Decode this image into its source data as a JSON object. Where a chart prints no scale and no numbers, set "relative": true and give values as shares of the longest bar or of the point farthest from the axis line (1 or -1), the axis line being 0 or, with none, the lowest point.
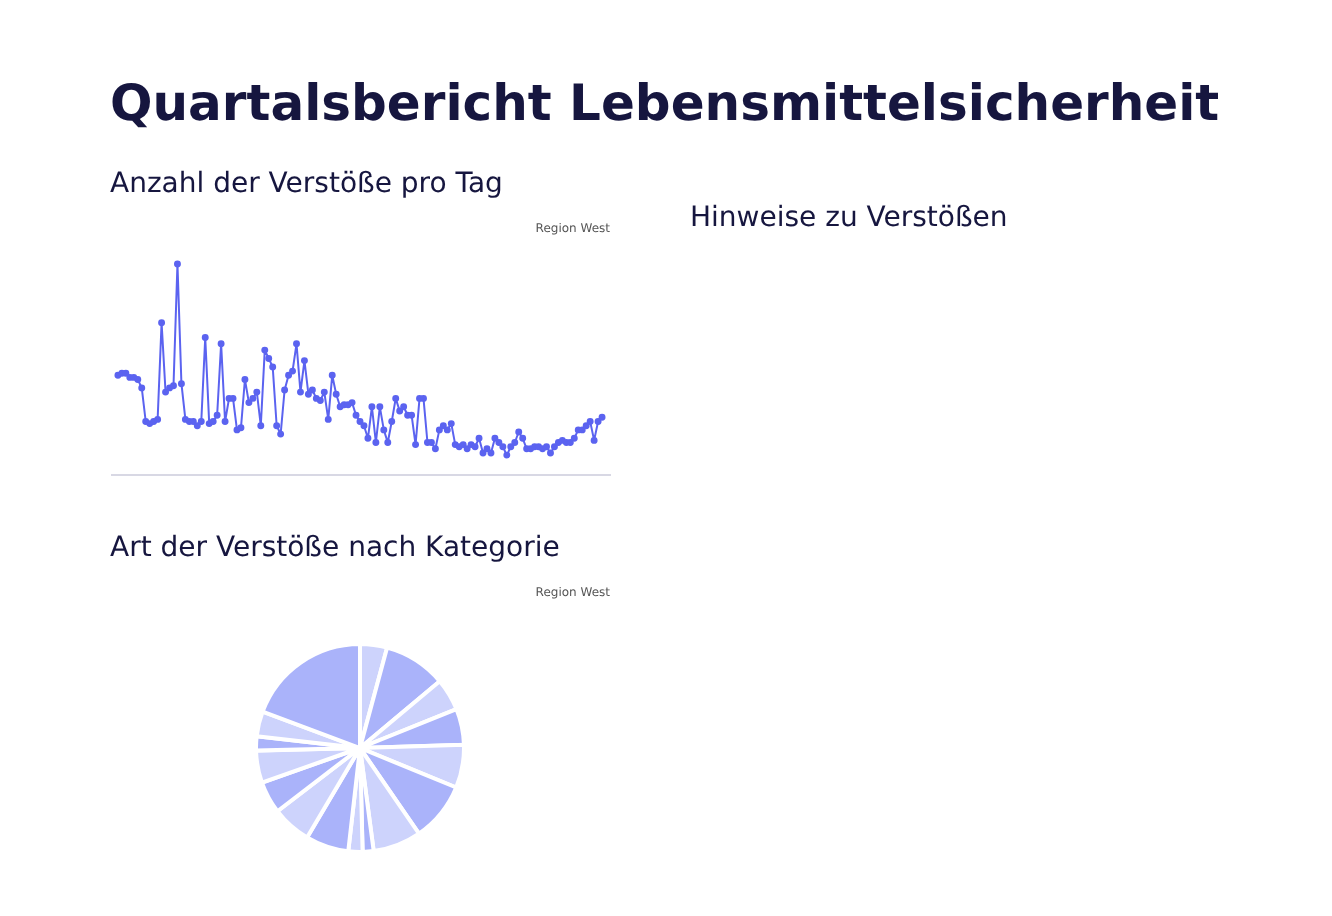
{
  "chart_data": [
    {
      "type": "other",
      "title": "Quartalsbericht Lebensmittelsicherheit"
    },
    {
      "type": "line",
      "title": "Anzahl der Verstöße pro Tag",
      "annotations": [
        "Region West"
      ],
      "relative": true,
      "marker": "circle",
      "line_style": "solid",
      "categories": [
        null,
        null,
        null,
        null,
        null,
        null,
        null,
        null,
        null,
        null,
        null,
        null,
        null,
        null,
        null,
        null,
        null,
        null,
        null,
        null,
        null,
        null,
        null,
        null,
        null,
        null,
        null,
        null,
        null,
        null,
        null,
        null,
        null,
        null,
        null,
        null,
        null,
        null,
        null,
        null,
        null,
        null,
        null,
        null,
        null,
        null,
        null,
        null,
        null,
        null,
        null,
        null,
        null,
        null,
        null,
        null,
        null,
        null,
        null,
        null,
        null,
        null,
        null,
        null,
        null,
        null,
        null,
        null,
        null,
        null,
        null,
        null,
        null,
        null,
        null,
        null,
        null,
        null,
        null,
        null,
        null,
        null,
        null,
        null,
        null,
        null,
        null,
        null,
        null,
        null,
        null,
        null,
        null,
        null,
        null,
        null,
        null,
        null,
        null,
        null,
        null,
        null,
        null,
        null,
        null,
        null,
        null,
        null,
        null,
        null,
        null,
        null,
        null,
        null,
        null,
        null,
        null,
        null,
        null,
        null,
        null,
        null,
        null
      ],
      "series": [
        {
          "color": "#5b63f0",
          "values": [
            0.47,
            0.48,
            0.48,
            0.46,
            0.46,
            0.45,
            0.41,
            0.25,
            0.24,
            0.25,
            0.26,
            0.72,
            0.39,
            0.41,
            0.42,
            1.0,
            0.43,
            0.26,
            0.25,
            0.25,
            0.23,
            0.25,
            0.65,
            0.24,
            0.25,
            0.28,
            0.62,
            0.25,
            0.36,
            0.36,
            0.21,
            0.22,
            0.45,
            0.34,
            0.36,
            0.39,
            0.23,
            0.59,
            0.55,
            0.51,
            0.23,
            0.19,
            0.4,
            0.47,
            0.49,
            0.62,
            0.39,
            0.54,
            0.38,
            0.4,
            0.36,
            0.35,
            0.39,
            0.26,
            0.47,
            0.38,
            0.32,
            0.33,
            0.33,
            0.34,
            0.28,
            0.25,
            0.23,
            0.17,
            0.32,
            0.15,
            0.32,
            0.21,
            0.15,
            0.25,
            0.36,
            0.3,
            0.32,
            0.28,
            0.28,
            0.14,
            0.36,
            0.36,
            0.15,
            0.15,
            0.12,
            0.21,
            0.23,
            0.21,
            0.24,
            0.14,
            0.13,
            0.14,
            0.12,
            0.14,
            0.13,
            0.17,
            0.1,
            0.12,
            0.1,
            0.17,
            0.15,
            0.13,
            0.09,
            0.13,
            0.15,
            0.2,
            0.17,
            0.12,
            0.12,
            0.13,
            0.13,
            0.12,
            0.13,
            0.1,
            0.13,
            0.15,
            0.16,
            0.15,
            0.15,
            0.17,
            0.21,
            0.21,
            0.23,
            0.25,
            0.16,
            0.25,
            0.27
          ]
        }
      ]
    },
    {
      "type": "other",
      "title": "Hinweise zu Verstößen"
    },
    {
      "type": "pie",
      "title": "Art der Verstöße nach Kategorie",
      "annotations": [
        "Region West"
      ],
      "categories": [
        null,
        null,
        null,
        null,
        null,
        null,
        null,
        null,
        null,
        null,
        null,
        null,
        null,
        null,
        null,
        null
      ],
      "values": [
        4.2,
        9.7,
        5.0,
        5.6,
        6.7,
        9.2,
        7.5,
        1.7,
        2.2,
        6.7,
        6.1,
        5.0,
        5.0,
        2.2,
        3.9,
        19.3
      ],
      "colors": [
        "#cdd3fc",
        "#aab3fa",
        "#cdd3fc",
        "#aab3fa",
        "#cdd3fc",
        "#aab3fa",
        "#cdd3fc",
        "#aab3fa",
        "#cdd3fc",
        "#aab3fa",
        "#cdd3fc",
        "#aab3fa",
        "#cdd3fc",
        "#aab3fa",
        "#cdd3fc",
        "#aab3fa"
      ]
    }
  ]
}
